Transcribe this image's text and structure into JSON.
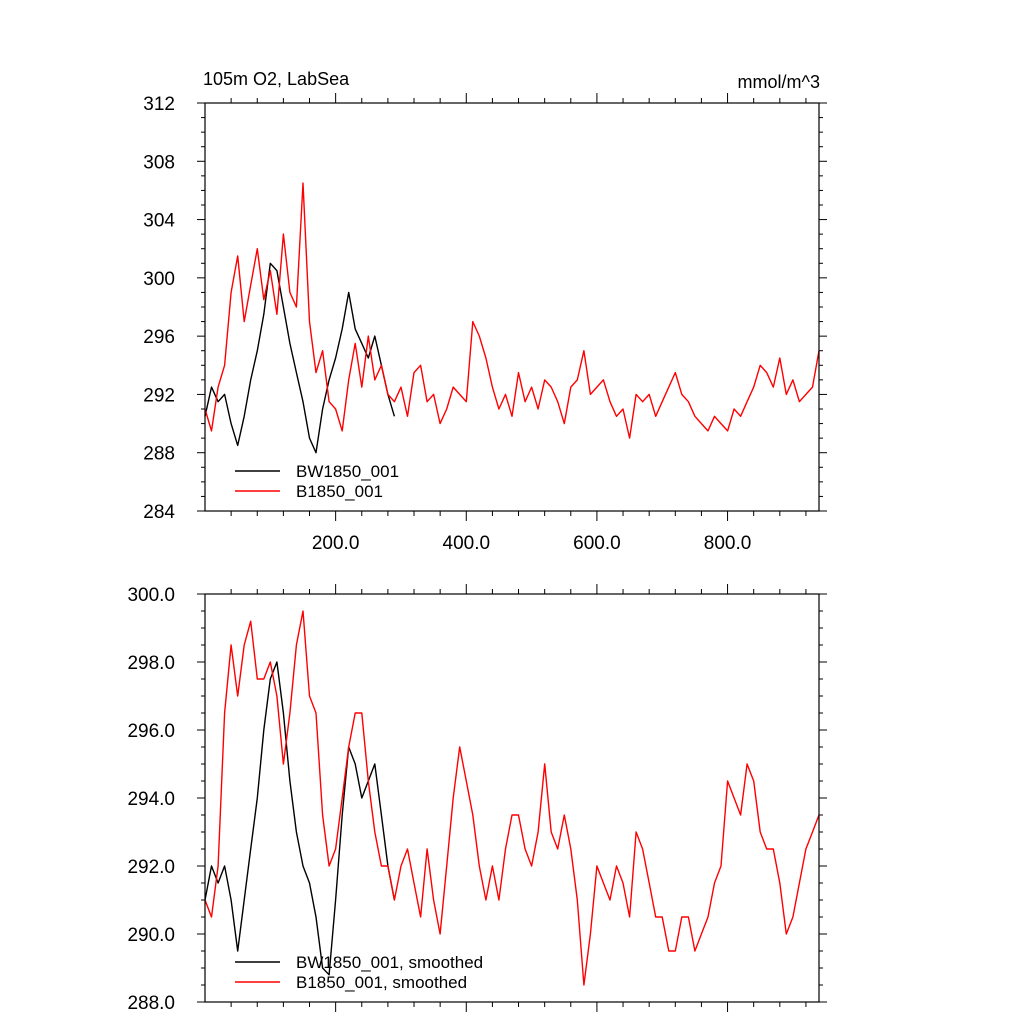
{
  "chart_data": [
    {
      "type": "line",
      "title_left": "105m O2, LabSea",
      "title_right": "mmol/m^3",
      "xlim": [
        0,
        940
      ],
      "ylim": [
        284,
        312
      ],
      "xticks": [
        200,
        400,
        600,
        800
      ],
      "xtick_labels": [
        "200.0",
        "400.0",
        "600.0",
        "800.0"
      ],
      "yticks": [
        284,
        288,
        292,
        296,
        300,
        304,
        308,
        312
      ],
      "ytick_labels": [
        "284",
        "288",
        "292",
        "296",
        "300",
        "304",
        "308",
        "312"
      ],
      "legend_position": "lower-left",
      "series": [
        {
          "name": "BW1850_001",
          "color": "#000000",
          "x": [
            0,
            10,
            20,
            30,
            40,
            50,
            60,
            70,
            80,
            90,
            100,
            110,
            120,
            130,
            140,
            150,
            160,
            170,
            180,
            190,
            200,
            210,
            220,
            230,
            240,
            250,
            260,
            270,
            280,
            290
          ],
          "values": [
            290.5,
            292.5,
            291.5,
            292.0,
            290.0,
            288.5,
            290.5,
            293.0,
            295.0,
            297.5,
            301.0,
            300.5,
            298.0,
            295.5,
            293.5,
            291.5,
            289.0,
            288.0,
            291.0,
            293.0,
            294.5,
            296.5,
            299.0,
            296.5,
            295.5,
            294.5,
            296.0,
            294.0,
            292.0,
            290.5
          ]
        },
        {
          "name": "B1850_001",
          "color": "#ff0000",
          "x": [
            0,
            10,
            20,
            30,
            40,
            50,
            60,
            70,
            80,
            90,
            100,
            110,
            120,
            130,
            140,
            150,
            160,
            170,
            180,
            190,
            200,
            210,
            220,
            230,
            240,
            250,
            260,
            270,
            280,
            290,
            300,
            310,
            320,
            330,
            340,
            350,
            360,
            370,
            380,
            390,
            400,
            410,
            420,
            430,
            440,
            450,
            460,
            470,
            480,
            490,
            500,
            510,
            520,
            530,
            540,
            550,
            560,
            570,
            580,
            590,
            600,
            610,
            620,
            630,
            640,
            650,
            660,
            670,
            680,
            690,
            700,
            710,
            720,
            730,
            740,
            750,
            760,
            770,
            780,
            790,
            800,
            810,
            820,
            830,
            840,
            850,
            860,
            870,
            880,
            890,
            900,
            910,
            920,
            930,
            940
          ],
          "values": [
            291.0,
            289.5,
            292.5,
            294.0,
            299.0,
            301.5,
            297.0,
            299.5,
            302.0,
            298.5,
            300.5,
            297.5,
            303.0,
            299.0,
            298.0,
            306.5,
            297.0,
            293.5,
            295.0,
            291.5,
            291.0,
            289.5,
            293.0,
            295.5,
            292.5,
            296.0,
            293.0,
            294.0,
            292.0,
            291.5,
            292.5,
            290.5,
            293.5,
            294.0,
            291.5,
            292.0,
            290.0,
            291.0,
            292.5,
            292.0,
            291.5,
            297.0,
            296.0,
            294.5,
            292.5,
            291.0,
            292.0,
            290.5,
            293.5,
            291.5,
            292.5,
            291.0,
            293.0,
            292.5,
            291.5,
            290.0,
            292.5,
            293.0,
            295.0,
            292.0,
            292.5,
            293.0,
            291.5,
            290.5,
            291.0,
            289.0,
            292.0,
            291.5,
            292.0,
            290.5,
            291.5,
            292.5,
            293.5,
            292.0,
            291.5,
            290.5,
            290.0,
            289.5,
            290.5,
            290.0,
            289.5,
            291.0,
            290.5,
            291.5,
            292.5,
            294.0,
            293.5,
            292.5,
            294.5,
            292.0,
            293.0,
            291.5,
            292.0,
            292.5,
            295.0
          ]
        }
      ]
    },
    {
      "type": "line",
      "xlim": [
        0,
        940
      ],
      "ylim": [
        288,
        300
      ],
      "xticks": [
        200,
        400,
        600,
        800
      ],
      "yticks": [
        288,
        290,
        292,
        294,
        296,
        298,
        300
      ],
      "ytick_labels": [
        "288.0",
        "290.0",
        "292.0",
        "294.0",
        "296.0",
        "298.0",
        "300.0"
      ],
      "legend_position": "lower-left",
      "series": [
        {
          "name": "BW1850_001, smoothed",
          "color": "#000000",
          "x": [
            0,
            10,
            20,
            30,
            40,
            50,
            60,
            70,
            80,
            90,
            100,
            110,
            120,
            130,
            140,
            150,
            160,
            170,
            180,
            190,
            200,
            210,
            220,
            230,
            240,
            250,
            260,
            270,
            280,
            290
          ],
          "values": [
            291.0,
            292.0,
            291.5,
            292.0,
            291.0,
            289.5,
            291.0,
            292.5,
            294.0,
            296.0,
            297.5,
            298.0,
            296.5,
            294.5,
            293.0,
            292.0,
            291.5,
            290.5,
            289.0,
            288.8,
            291.0,
            293.5,
            295.5,
            295.0,
            294.0,
            294.5,
            295.0,
            293.5,
            292.0,
            291.0
          ]
        },
        {
          "name": "B1850_001, smoothed",
          "color": "#ff0000",
          "x": [
            0,
            10,
            20,
            30,
            40,
            50,
            60,
            70,
            80,
            90,
            100,
            110,
            120,
            130,
            140,
            150,
            160,
            170,
            180,
            190,
            200,
            210,
            220,
            230,
            240,
            250,
            260,
            270,
            280,
            290,
            300,
            310,
            320,
            330,
            340,
            350,
            360,
            370,
            380,
            390,
            400,
            410,
            420,
            430,
            440,
            450,
            460,
            470,
            480,
            490,
            500,
            510,
            520,
            530,
            540,
            550,
            560,
            570,
            580,
            590,
            600,
            610,
            620,
            630,
            640,
            650,
            660,
            670,
            680,
            690,
            700,
            710,
            720,
            730,
            740,
            750,
            760,
            770,
            780,
            790,
            800,
            810,
            820,
            830,
            840,
            850,
            860,
            870,
            880,
            890,
            900,
            910,
            920,
            930,
            940
          ],
          "values": [
            291.0,
            290.5,
            292.0,
            296.5,
            298.5,
            297.0,
            298.5,
            299.2,
            297.5,
            297.5,
            298.0,
            297.0,
            295.0,
            296.5,
            298.5,
            299.5,
            297.0,
            296.5,
            293.5,
            292.0,
            292.5,
            294.0,
            295.5,
            296.5,
            296.5,
            294.5,
            293.0,
            292.0,
            292.0,
            291.0,
            292.0,
            292.5,
            291.5,
            290.5,
            292.5,
            291.0,
            290.0,
            292.0,
            294.0,
            295.5,
            294.5,
            293.5,
            292.0,
            291.0,
            292.0,
            291.0,
            292.5,
            293.5,
            293.5,
            292.5,
            292.0,
            293.0,
            295.0,
            293.0,
            292.5,
            293.5,
            292.5,
            291.0,
            288.5,
            290.0,
            292.0,
            291.5,
            291.0,
            292.0,
            291.5,
            290.5,
            293.0,
            292.5,
            291.5,
            290.5,
            290.5,
            289.5,
            289.5,
            290.5,
            290.5,
            289.5,
            290.0,
            290.5,
            291.5,
            292.0,
            294.5,
            294.0,
            293.5,
            295.0,
            294.5,
            293.0,
            292.5,
            292.5,
            291.5,
            290.0,
            290.5,
            291.5,
            292.5,
            293.0,
            293.5
          ]
        }
      ]
    }
  ]
}
